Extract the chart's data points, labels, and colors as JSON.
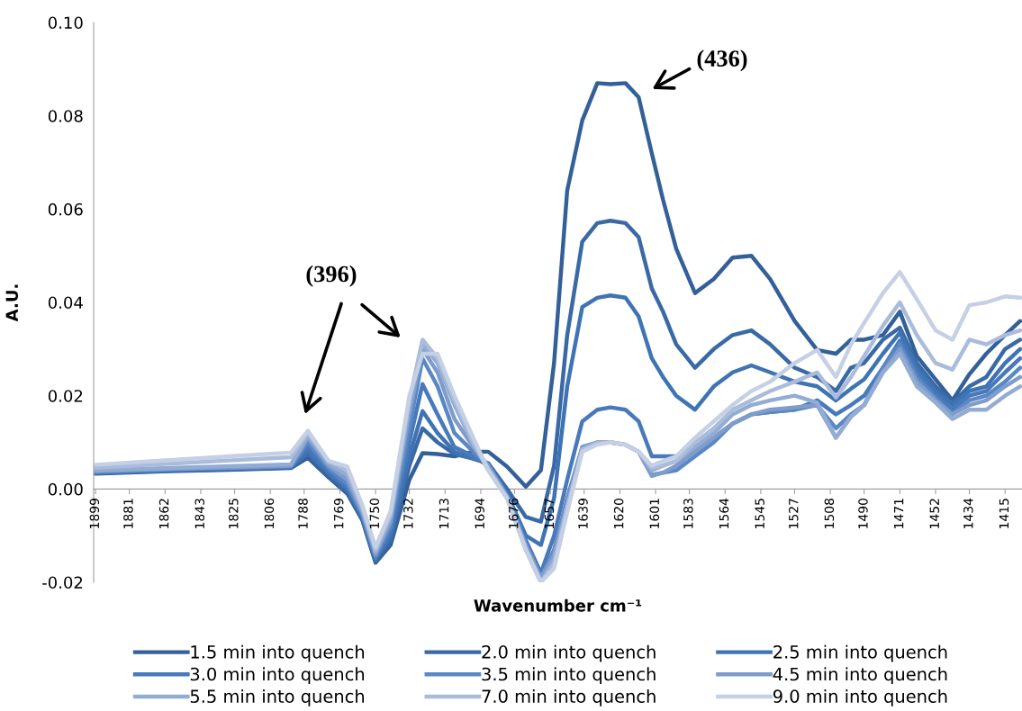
{
  "chart_data": {
    "type": "line",
    "xlabel": "Wavenumber cm⁻¹",
    "ylabel": "A.U.",
    "x": [
      1899,
      1860,
      1820,
      1795,
      1786,
      1775,
      1765,
      1757,
      1750,
      1742,
      1732,
      1725,
      1717,
      1708,
      1698,
      1690,
      1680,
      1670,
      1662,
      1655,
      1648,
      1640,
      1632,
      1625,
      1617,
      1610,
      1603,
      1597,
      1590,
      1580,
      1570,
      1560,
      1550,
      1540,
      1527,
      1515,
      1505,
      1497,
      1490,
      1480,
      1471,
      1462,
      1452,
      1443,
      1434,
      1425,
      1415,
      1407
    ],
    "xlim": [
      1900,
      1406
    ],
    "xticks": [
      1899,
      1881,
      1862,
      1843,
      1825,
      1806,
      1788,
      1769,
      1750,
      1732,
      1713,
      1694,
      1676,
      1657,
      1639,
      1620,
      1601,
      1583,
      1564,
      1545,
      1527,
      1508,
      1490,
      1471,
      1452,
      1434,
      1415
    ],
    "ylim": [
      -0.02,
      0.1
    ],
    "yticks": [
      {
        "value": -0.02,
        "label": "-0.02"
      },
      {
        "value": 0,
        "label": "0.00"
      },
      {
        "value": 0.02,
        "label": "0.02"
      },
      {
        "value": 0.04,
        "label": "0.04"
      },
      {
        "value": 0.06,
        "label": "0.06"
      },
      {
        "value": 0.08,
        "label": "0.08"
      },
      {
        "value": 0.1,
        "label": "0.10"
      }
    ],
    "legend": "bottom",
    "series": [
      {
        "name": "1.5 min into quench",
        "color": "#34609a",
        "values": [
          0.0033,
          0.0038,
          0.0042,
          0.0045,
          0.0067,
          0.0025,
          -0.001,
          -0.0067,
          -0.0158,
          -0.012,
          0.002,
          0.0077,
          0.0075,
          0.007,
          0.008,
          0.008,
          0.0048,
          0.0005,
          0.004,
          0.027,
          0.064,
          0.079,
          0.087,
          0.0868,
          0.087,
          0.084,
          0.072,
          0.062,
          0.0515,
          0.042,
          0.045,
          0.0496,
          0.05,
          0.045,
          0.036,
          0.0298,
          0.029,
          0.032,
          0.032,
          0.033,
          0.038,
          0.0285,
          0.0235,
          0.019,
          0.0246,
          0.029,
          0.033,
          0.036
        ]
      },
      {
        "name": "2.0 min into quench",
        "color": "#3a6aa6",
        "values": [
          0.0034,
          0.0039,
          0.0043,
          0.0046,
          0.0075,
          0.003,
          -0.0005,
          -0.0065,
          -0.0155,
          -0.011,
          0.005,
          0.013,
          0.01,
          0.0075,
          0.0065,
          0.0055,
          0,
          -0.006,
          -0.007,
          0.005,
          0.033,
          0.053,
          0.057,
          0.0575,
          0.057,
          0.054,
          0.043,
          0.038,
          0.031,
          0.026,
          0.03,
          0.033,
          0.034,
          0.031,
          0.026,
          0.024,
          0.021,
          0.026,
          0.027,
          0.032,
          0.0346,
          0.027,
          0.022,
          0.0185,
          0.022,
          0.024,
          0.03,
          0.032
        ]
      },
      {
        "name": "2.5 min into quench",
        "color": "#3f74b4",
        "values": [
          0.0035,
          0.004,
          0.0044,
          0.0047,
          0.008,
          0.0035,
          0,
          -0.006,
          -0.015,
          -0.01,
          0.007,
          0.0167,
          0.012,
          0.008,
          0.0065,
          0.0055,
          -0.001,
          -0.01,
          -0.012,
          -0.002,
          0.022,
          0.039,
          0.041,
          0.0415,
          0.041,
          0.037,
          0.028,
          0.024,
          0.02,
          0.017,
          0.022,
          0.025,
          0.0265,
          0.025,
          0.023,
          0.022,
          0.019,
          0.0215,
          0.0235,
          0.029,
          0.0335,
          0.026,
          0.021,
          0.018,
          0.021,
          0.022,
          0.027,
          0.03
        ]
      },
      {
        "name": "3.0 min into quench",
        "color": "#4779bb",
        "values": [
          0.0036,
          0.0041,
          0.0045,
          0.0048,
          0.009,
          0.004,
          0.0005,
          -0.0058,
          -0.0148,
          -0.009,
          0.01,
          0.0225,
          0.016,
          0.009,
          0.007,
          0.005,
          -0.0012,
          -0.011,
          -0.018,
          -0.01,
          0.002,
          0.0145,
          0.017,
          0.0175,
          0.017,
          0.0145,
          0.007,
          0.007,
          0.007,
          0.008,
          0.011,
          0.014,
          0.016,
          0.0165,
          0.017,
          0.019,
          0.016,
          0.018,
          0.02,
          0.026,
          0.0318,
          0.025,
          0.02,
          0.017,
          0.02,
          0.021,
          0.025,
          0.028
        ]
      },
      {
        "name": "3.5 min into quench",
        "color": "#5a88c5",
        "values": [
          0.0037,
          0.0042,
          0.0046,
          0.0049,
          0.01,
          0.0045,
          0.001,
          -0.0055,
          -0.0145,
          -0.008,
          0.013,
          0.028,
          0.022,
          0.012,
          0.008,
          0.005,
          -0.0014,
          -0.012,
          -0.019,
          -0.013,
          -0.002,
          0.009,
          0.01,
          0.01,
          0.0095,
          0.008,
          0.003,
          0.0035,
          0.004,
          0.007,
          0.01,
          0.014,
          0.016,
          0.0165,
          0.017,
          0.018,
          0.013,
          0.016,
          0.018,
          0.026,
          0.031,
          0.024,
          0.0195,
          0.016,
          0.019,
          0.02,
          0.023,
          0.026
        ]
      },
      {
        "name": "4.5 min into quench",
        "color": "#7f9ccb",
        "values": [
          0.0038,
          0.0043,
          0.0047,
          0.005,
          0.011,
          0.005,
          0.002,
          -0.005,
          -0.014,
          -0.007,
          0.016,
          0.03,
          0.025,
          0.015,
          0.009,
          0.005,
          -0.0016,
          -0.012,
          -0.019,
          -0.014,
          -0.003,
          0.0088,
          0.01,
          0.01,
          0.0095,
          0.008,
          0.0028,
          0.0035,
          0.005,
          0.008,
          0.011,
          0.014,
          0.016,
          0.017,
          0.0175,
          0.018,
          0.011,
          0.0155,
          0.018,
          0.025,
          0.03,
          0.023,
          0.019,
          0.016,
          0.018,
          0.019,
          0.022,
          0.024
        ]
      },
      {
        "name": "5.5 min into quench",
        "color": "#93acd4",
        "values": [
          0.004,
          0.0045,
          0.005,
          0.0053,
          0.0115,
          0.0055,
          0.003,
          -0.0045,
          -0.0135,
          -0.006,
          0.018,
          0.031,
          0.027,
          0.018,
          0.0095,
          0.0045,
          -0.0018,
          -0.013,
          -0.02,
          -0.015,
          -0.004,
          0.0086,
          0.01,
          0.01,
          0.0095,
          0.008,
          0.004,
          0.005,
          0.006,
          0.009,
          0.012,
          0.016,
          0.018,
          0.019,
          0.02,
          0.0185,
          0.011,
          0.0155,
          0.018,
          0.025,
          0.029,
          0.022,
          0.0185,
          0.015,
          0.017,
          0.017,
          0.02,
          0.022
        ]
      },
      {
        "name": "7.0 min into quench",
        "color": "#aabcdc",
        "values": [
          0.0046,
          0.0054,
          0.0063,
          0.0068,
          0.012,
          0.006,
          0.004,
          -0.004,
          -0.013,
          -0.0055,
          0.019,
          0.032,
          0.028,
          0.019,
          0.01,
          0.004,
          -0.002,
          -0.013,
          -0.02,
          -0.016,
          -0.004,
          0.0084,
          0.0098,
          0.01,
          0.0095,
          0.008,
          0.0045,
          0.005,
          0.006,
          0.01,
          0.013,
          0.017,
          0.019,
          0.021,
          0.023,
          0.025,
          0.0196,
          0.024,
          0.0285,
          0.035,
          0.04,
          0.033,
          0.027,
          0.0256,
          0.032,
          0.031,
          0.033,
          0.034
        ]
      },
      {
        "name": "9.0 min into quench",
        "color": "#c5d0e4",
        "values": [
          0.0052,
          0.0062,
          0.0072,
          0.0078,
          0.0125,
          0.006,
          0.0048,
          -0.0035,
          -0.0125,
          -0.0048,
          0.02,
          0.029,
          0.029,
          0.02,
          0.011,
          0.004,
          -0.002,
          -0.013,
          -0.02,
          -0.017,
          -0.005,
          0.008,
          0.0095,
          0.01,
          0.0095,
          0.008,
          0.005,
          0.006,
          0.007,
          0.011,
          0.0145,
          0.018,
          0.021,
          0.023,
          0.027,
          0.0298,
          0.024,
          0.031,
          0.0356,
          0.042,
          0.0465,
          0.0407,
          0.034,
          0.032,
          0.0394,
          0.04,
          0.0413,
          0.041
        ]
      }
    ],
    "annotations": [
      "(396)",
      "(436)"
    ]
  }
}
